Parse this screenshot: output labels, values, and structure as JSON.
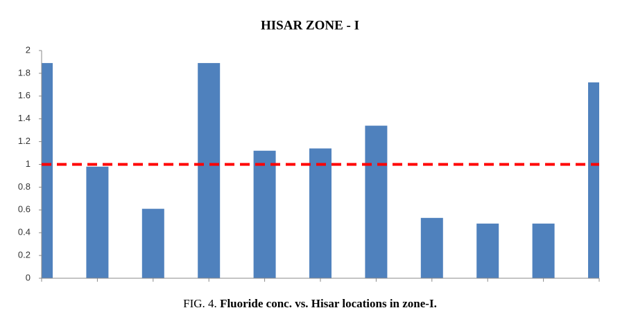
{
  "chart_data": {
    "type": "bar",
    "title": "HISAR ZONE - I",
    "categories": [
      null,
      null,
      null,
      null,
      null,
      null,
      null,
      null,
      null,
      null,
      null
    ],
    "values": [
      1.89,
      0.98,
      0.61,
      1.89,
      1.12,
      1.14,
      1.34,
      0.53,
      0.48,
      0.48,
      1.72
    ],
    "color": "#4f81bd",
    "ylim": [
      0,
      2
    ],
    "yticks": [
      0,
      0.2,
      0.4,
      0.6,
      0.8,
      1,
      1.2,
      1.4,
      1.6,
      1.8,
      2
    ],
    "grid": false,
    "reference_line": {
      "value": 1,
      "color": "#ff0000"
    },
    "caption": {
      "label": "FIG. 4.",
      "text": "Fluoride conc. vs. Hisar locations in zone-I."
    }
  }
}
